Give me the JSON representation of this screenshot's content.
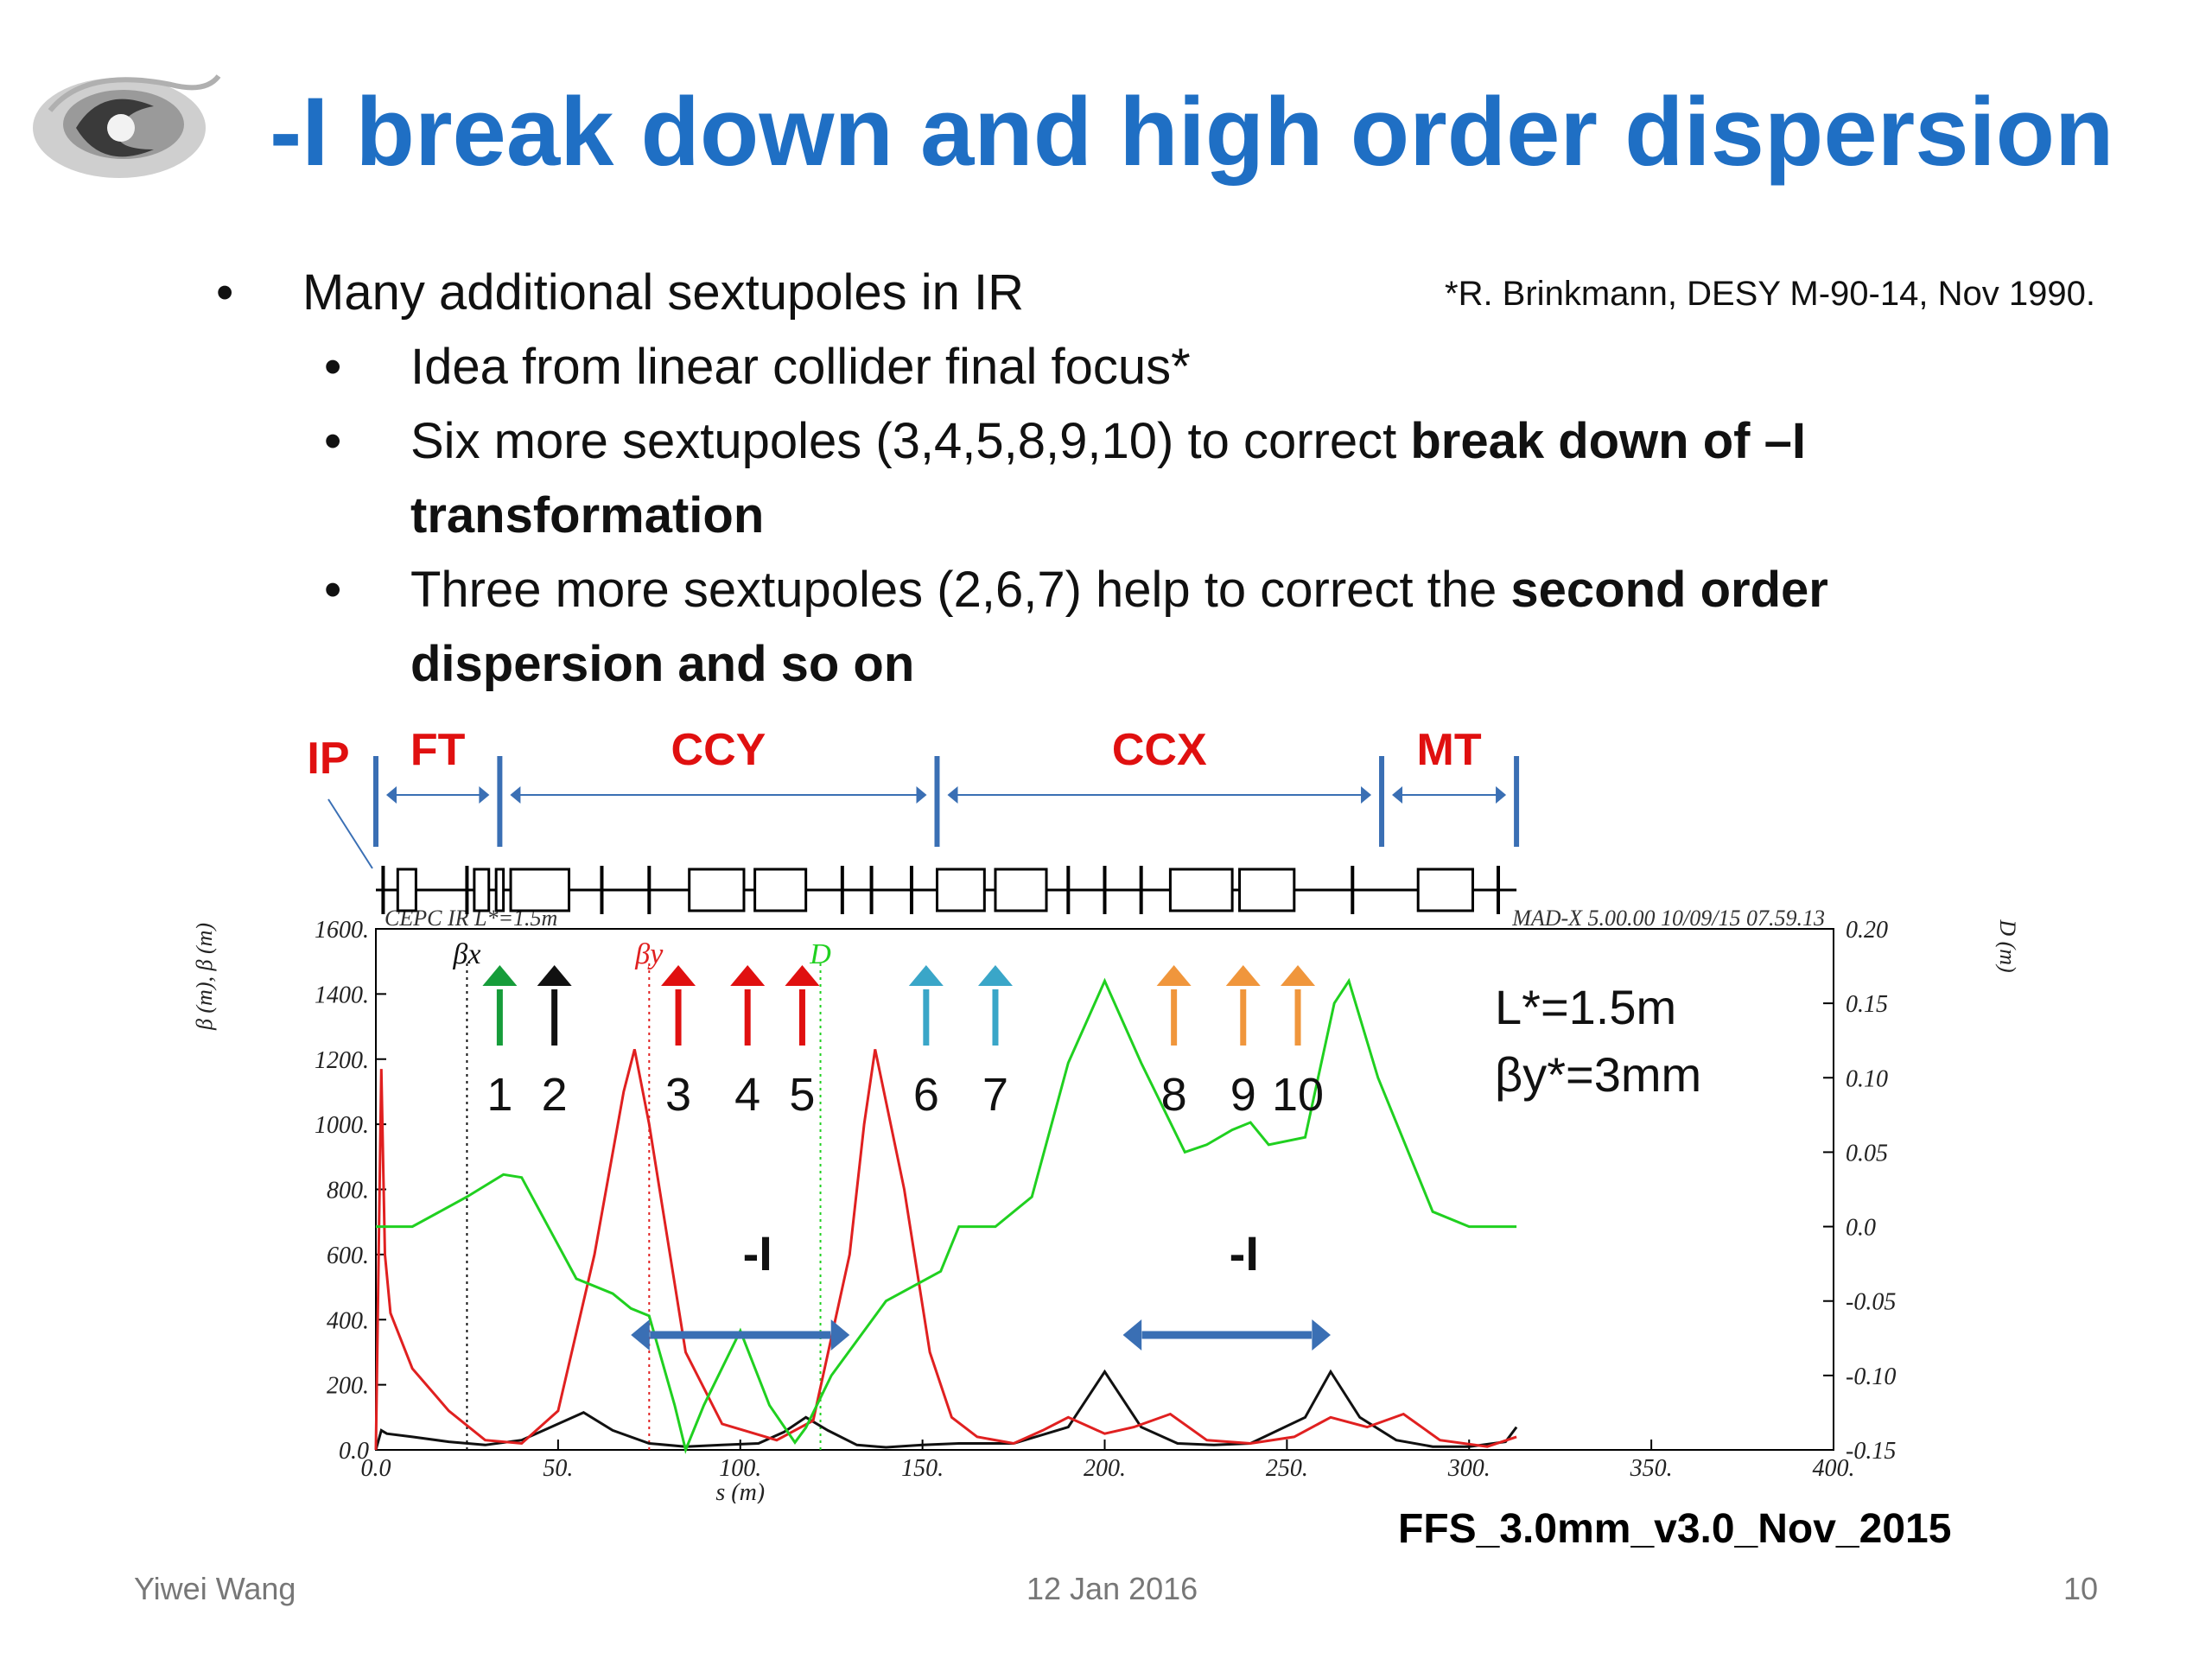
{
  "slide": {
    "title": "-I break down and high order dispersion",
    "reference": "*R. Brinkmann, DESY M-90-14, Nov 1990.",
    "bullet_main": "Many additional sextupoles in IR",
    "sub1": "Idea from linear collider final focus*",
    "sub2_plain": "Six more sextupoles (3,4,5,8,9,10) to correct ",
    "sub2_bold": "break down of –I transformation",
    "sub3_plain": "Three more sextupoles (2,6,7) help to correct the ",
    "sub3_bold": "second order dispersion and so on",
    "lattice_name": "FFS_3.0mm_v3.0_Nov_2015",
    "bullet_glyph": "•"
  },
  "footer": {
    "author": "Yiwei Wang",
    "date": "12 Jan 2016",
    "page": "10"
  },
  "colors": {
    "title": "#1f6fc4",
    "section_label": "#e01010",
    "boundary": "#3a6fb4",
    "beta_x": "#111111",
    "beta_y": "#e02020",
    "dispersion": "#20d020",
    "arrow_green": "#169c3a",
    "arrow_black": "#111111",
    "arrow_red": "#e01010",
    "arrow_teal": "#3aa6c8",
    "arrow_orange": "#f0963c",
    "minus_i_arrow": "#3a6fb4"
  },
  "chart_data": {
    "type": "line",
    "plot_header_left": "CEPC IR L*=1.5m",
    "plot_header_right": "MAD-X 5.00.00  10/09/15 07.59.13",
    "xlabel": "s (m)",
    "ylabel_left": "β (m), β (m)",
    "ylabel_right": "D (m)",
    "xlim": [
      0,
      400
    ],
    "ylim_left": [
      0,
      1600
    ],
    "ylim_right": [
      -0.15,
      0.2
    ],
    "x_ticks": [
      "0.0",
      "50.",
      "100.",
      "150.",
      "200.",
      "250.",
      "300.",
      "350.",
      "400."
    ],
    "y_ticks_left": [
      "0.0",
      "200.",
      "400.",
      "600.",
      "800.",
      "1000.",
      "1200.",
      "1400.",
      "1600."
    ],
    "y_ticks_right": [
      "-0.15",
      "-0.10",
      "-0.05",
      "0.0",
      "0.05",
      "0.10",
      "0.15",
      "0.20"
    ],
    "grid": false,
    "legend_labels": [
      "βx",
      "βy",
      "D"
    ],
    "legend_x": [
      25,
      75,
      122
    ],
    "annotation_params": [
      "L*=1.5m",
      "βy*=3mm"
    ],
    "minus_i_label": "-I",
    "minus_i_spans": [
      [
        70,
        130
      ],
      [
        205,
        262
      ]
    ],
    "sections": [
      {
        "label": "IP",
        "at": 0
      },
      {
        "label": "FT",
        "from": 0,
        "to": 34
      },
      {
        "label": "CCY",
        "from": 34,
        "to": 154
      },
      {
        "label": "CCX",
        "from": 154,
        "to": 276
      },
      {
        "label": "MT",
        "from": 276,
        "to": 313
      }
    ],
    "sextupoles": [
      {
        "label": "1",
        "s": 34,
        "color": "#169c3a"
      },
      {
        "label": "2",
        "s": 49,
        "color": "#111111"
      },
      {
        "label": "3",
        "s": 83,
        "color": "#e01010"
      },
      {
        "label": "4",
        "s": 102,
        "color": "#e01010"
      },
      {
        "label": "5",
        "s": 117,
        "color": "#e01010"
      },
      {
        "label": "6",
        "s": 151,
        "color": "#3aa6c8"
      },
      {
        "label": "7",
        "s": 170,
        "color": "#3aa6c8"
      },
      {
        "label": "8",
        "s": 219,
        "color": "#f0963c"
      },
      {
        "label": "9",
        "s": 238,
        "color": "#f0963c"
      },
      {
        "label": "10",
        "s": 253,
        "color": "#f0963c"
      }
    ],
    "series": [
      {
        "name": "βx",
        "axis": "left",
        "x": [
          0,
          1.5,
          3,
          10,
          20,
          30,
          40,
          50,
          57,
          65,
          75,
          85,
          95,
          105,
          112,
          118,
          124,
          132,
          140,
          150,
          160,
          175,
          190,
          200,
          210,
          220,
          230,
          240,
          255,
          262,
          270,
          280,
          290,
          300,
          310,
          313
        ],
        "y": [
          0,
          60,
          50,
          40,
          25,
          15,
          30,
          80,
          115,
          60,
          20,
          10,
          15,
          20,
          55,
          100,
          60,
          15,
          8,
          15,
          20,
          20,
          70,
          240,
          70,
          20,
          15,
          20,
          100,
          240,
          100,
          30,
          10,
          10,
          25,
          70
        ]
      },
      {
        "name": "βy",
        "axis": "left",
        "x": [
          0,
          1.5,
          2.5,
          4,
          10,
          20,
          30,
          40,
          50,
          60,
          68,
          71,
          75,
          85,
          95,
          110,
          120,
          130,
          134,
          137,
          145,
          152,
          158,
          165,
          175,
          183,
          190,
          200,
          208,
          218,
          228,
          240,
          252,
          262,
          272,
          282,
          292,
          305,
          313
        ],
        "y": [
          0,
          1170,
          600,
          420,
          250,
          120,
          30,
          20,
          120,
          600,
          1100,
          1230,
          1000,
          300,
          80,
          30,
          90,
          600,
          1000,
          1230,
          800,
          300,
          100,
          40,
          20,
          60,
          100,
          50,
          70,
          110,
          30,
          20,
          40,
          100,
          70,
          110,
          30,
          10,
          40
        ]
      },
      {
        "name": "D",
        "axis": "right",
        "x": [
          0,
          10,
          25,
          35,
          40,
          55,
          65,
          70,
          75,
          82,
          85,
          90,
          100,
          108,
          115,
          118,
          125,
          140,
          155,
          160,
          170,
          180,
          190,
          200,
          210,
          222,
          228,
          235,
          240,
          245,
          255,
          263,
          267,
          275,
          290,
          300,
          313
        ],
        "y": [
          0.0,
          0.0,
          0.02,
          0.035,
          0.033,
          -0.035,
          -0.045,
          -0.055,
          -0.06,
          -0.12,
          -0.15,
          -0.12,
          -0.07,
          -0.12,
          -0.145,
          -0.135,
          -0.1,
          -0.05,
          -0.03,
          0.0,
          0.0,
          0.02,
          0.11,
          0.165,
          0.11,
          0.05,
          0.055,
          0.065,
          0.07,
          0.055,
          0.06,
          0.15,
          0.165,
          0.1,
          0.01,
          0.0,
          0.0
        ]
      }
    ]
  }
}
